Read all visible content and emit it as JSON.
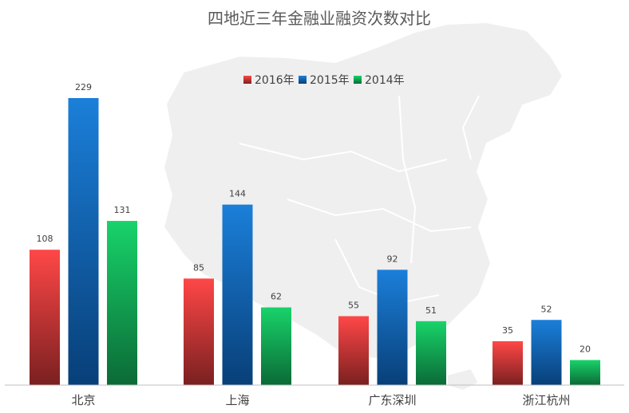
{
  "chart_data": {
    "type": "bar",
    "title": "四地近三年金融业融资次数对比",
    "categories": [
      "北京",
      "上海",
      "广东深圳",
      "浙江杭州"
    ],
    "series": [
      {
        "name": "2016年",
        "values": [
          108,
          85,
          55,
          35
        ],
        "color_top": "#ff4747",
        "color_bottom": "#7a2020"
      },
      {
        "name": "2015年",
        "values": [
          229,
          144,
          92,
          52
        ],
        "color_top": "#1b7fd9",
        "color_bottom": "#083f78"
      },
      {
        "name": "2014年",
        "values": [
          131,
          62,
          51,
          20
        ],
        "color_top": "#18d36a",
        "color_bottom": "#0b6a36"
      }
    ],
    "ylim": [
      0,
      229
    ],
    "grid": false,
    "legend_position": "top",
    "background": "faint map of China",
    "axis_color": "#bfbfbf"
  }
}
